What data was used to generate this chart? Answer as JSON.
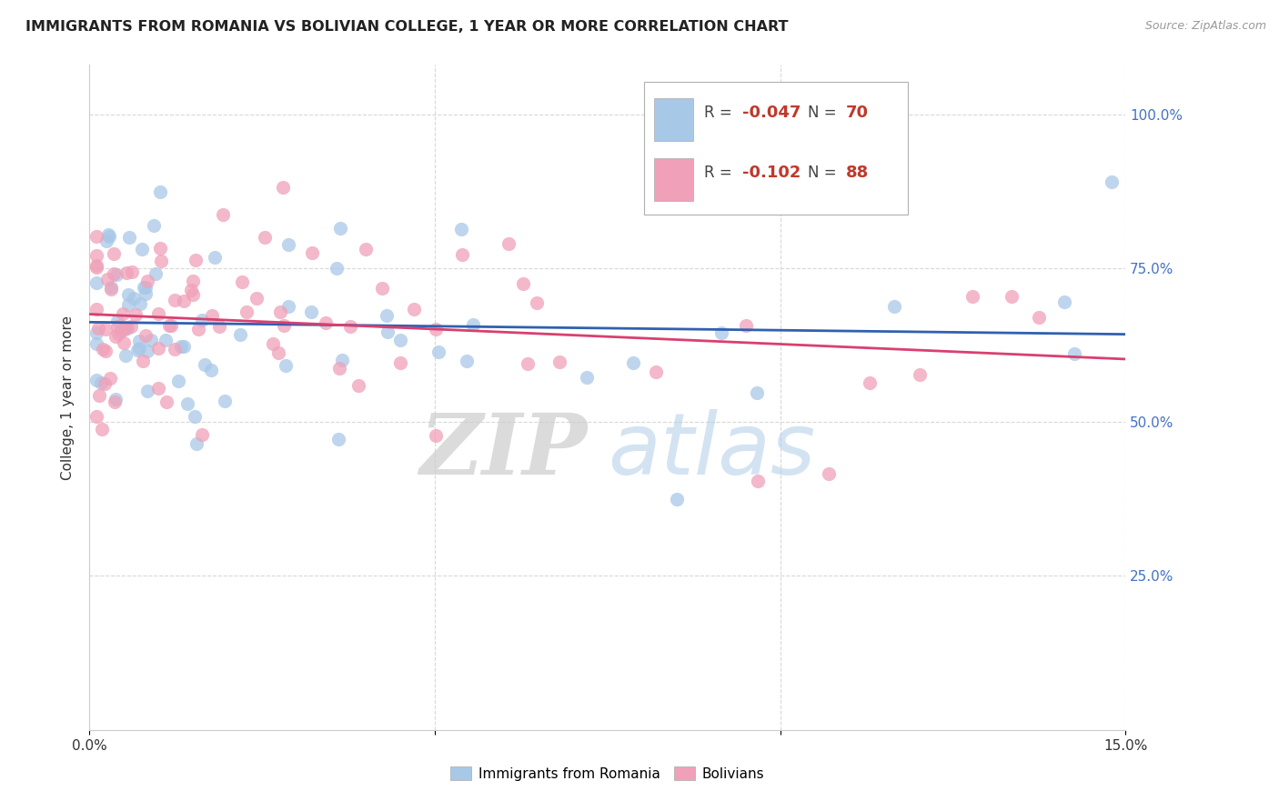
{
  "title": "IMMIGRANTS FROM ROMANIA VS BOLIVIAN COLLEGE, 1 YEAR OR MORE CORRELATION CHART",
  "source": "Source: ZipAtlas.com",
  "ylabel": "College, 1 year or more",
  "ytick_labels": [
    "25.0%",
    "50.0%",
    "75.0%",
    "100.0%"
  ],
  "ytick_values": [
    0.25,
    0.5,
    0.75,
    1.0
  ],
  "xlim": [
    0.0,
    0.15
  ],
  "ylim": [
    0.0,
    1.08
  ],
  "blue_color": "#a8c8e8",
  "pink_color": "#f0a0b8",
  "blue_line_color": "#3060b0",
  "pink_line_color": "#d84070",
  "legend_label_blue": "Immigrants from Romania",
  "legend_label_pink": "Bolivians",
  "watermark_zip": "ZIP",
  "watermark_atlas": "atlas",
  "background_color": "#ffffff",
  "grid_color": "#d8d8d8",
  "blue_r": "-0.047",
  "blue_n": "70",
  "pink_r": "-0.102",
  "pink_n": "88"
}
